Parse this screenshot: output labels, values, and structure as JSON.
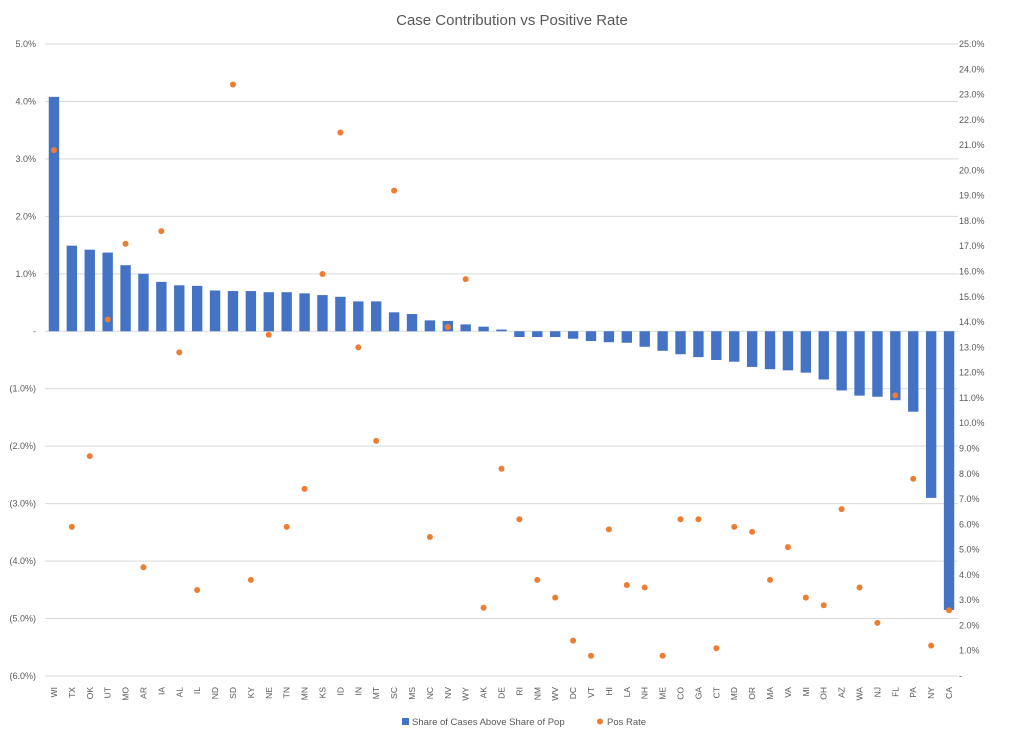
{
  "chart_data": {
    "type": "bar+scatter",
    "title": "Case Contribution vs Positive Rate",
    "categories": [
      "WI",
      "TX",
      "OK",
      "UT",
      "MO",
      "AR",
      "IA",
      "AL",
      "IL",
      "ND",
      "SD",
      "KY",
      "NE",
      "TN",
      "MN",
      "KS",
      "ID",
      "IN",
      "MT",
      "SC",
      "MS",
      "NC",
      "NV",
      "WY",
      "AK",
      "DE",
      "RI",
      "NM",
      "WV",
      "DC",
      "VT",
      "HI",
      "LA",
      "NH",
      "ME",
      "CO",
      "GA",
      "CT",
      "MD",
      "OR",
      "MA",
      "VA",
      "MI",
      "OH",
      "AZ",
      "WA",
      "NJ",
      "FL",
      "PA",
      "NY",
      "CA"
    ],
    "series": [
      {
        "name": "Share of Cases Above Share of Pop",
        "type": "bar",
        "axis": "left",
        "color": "#4472C4",
        "values": [
          4.08,
          1.49,
          1.42,
          1.37,
          1.15,
          1.0,
          0.86,
          0.8,
          0.79,
          0.71,
          0.7,
          0.7,
          0.68,
          0.68,
          0.66,
          0.63,
          0.6,
          0.52,
          0.52,
          0.33,
          0.3,
          0.19,
          0.18,
          0.12,
          0.08,
          0.03,
          -0.1,
          -0.1,
          -0.1,
          -0.13,
          -0.17,
          -0.19,
          -0.2,
          -0.27,
          -0.34,
          -0.4,
          -0.45,
          -0.5,
          -0.53,
          -0.62,
          -0.66,
          -0.68,
          -0.72,
          -0.84,
          -1.03,
          -1.12,
          -1.14,
          -1.2,
          -1.4,
          -2.9,
          -4.85
        ]
      },
      {
        "name": "Pos Rate",
        "type": "scatter",
        "axis": "right",
        "color": "#ED7D31",
        "values": [
          20.8,
          5.9,
          8.7,
          14.1,
          17.1,
          4.3,
          17.6,
          12.8,
          3.4,
          null,
          23.4,
          3.8,
          13.5,
          5.9,
          7.4,
          15.9,
          21.5,
          13.0,
          9.3,
          19.2,
          null,
          5.5,
          13.8,
          15.7,
          2.7,
          8.2,
          6.2,
          3.8,
          3.1,
          1.4,
          0.8,
          5.8,
          3.6,
          3.5,
          0.8,
          6.2,
          6.2,
          1.1,
          5.9,
          5.7,
          3.8,
          5.1,
          3.1,
          2.8,
          6.6,
          3.5,
          2.1,
          11.1,
          7.8,
          1.2,
          2.6
        ]
      }
    ],
    "left_axis": {
      "min": -6.0,
      "max": 5.0,
      "step": 1.0,
      "tick_labels": [
        "(6.0%)",
        "(5.0%)",
        "(4.0%)",
        "(3.0%)",
        "(2.0%)",
        "(1.0%)",
        "-",
        "1.0%",
        "2.0%",
        "3.0%",
        "4.0%",
        "5.0%"
      ]
    },
    "right_axis": {
      "min": 0.0,
      "max": 25.0,
      "step": 1.0,
      "tick_labels": [
        "-",
        "1.0%",
        "2.0%",
        "3.0%",
        "4.0%",
        "5.0%",
        "6.0%",
        "7.0%",
        "8.0%",
        "9.0%",
        "10.0%",
        "11.0%",
        "12.0%",
        "13.0%",
        "14.0%",
        "15.0%",
        "16.0%",
        "17.0%",
        "18.0%",
        "19.0%",
        "20.0%",
        "21.0%",
        "22.0%",
        "23.0%",
        "24.0%",
        "25.0%"
      ]
    },
    "grid": true,
    "legend_position": "bottom"
  }
}
